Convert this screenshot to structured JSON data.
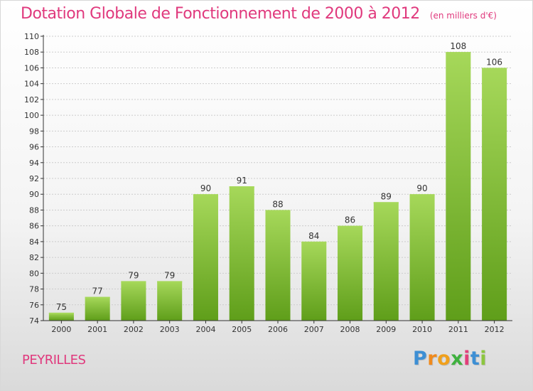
{
  "chart_data": {
    "type": "bar",
    "title": "Dotation Globale de Fonctionnement de 2000 à 2012",
    "subtitle": "(en milliers d'€)",
    "categories": [
      "2000",
      "2001",
      "2002",
      "2003",
      "2004",
      "2005",
      "2006",
      "2007",
      "2008",
      "2009",
      "2010",
      "2011",
      "2012"
    ],
    "values": [
      75,
      77,
      79,
      79,
      90,
      91,
      88,
      84,
      86,
      89,
      90,
      108,
      106
    ],
    "ylim": [
      74,
      110
    ],
    "yticks": [
      74,
      76,
      78,
      80,
      82,
      84,
      86,
      88,
      90,
      92,
      94,
      96,
      98,
      100,
      102,
      104,
      106,
      108,
      110
    ],
    "grid": true,
    "bar_color": "#7cbb2a",
    "bar_color_light": "#a6d85a",
    "bar_color_dark": "#5f9e1a"
  },
  "location": "PEYRILLES",
  "logo": {
    "letters": [
      "P",
      "r",
      "o",
      "x",
      "i",
      "t",
      "i"
    ]
  },
  "colors": {
    "title": "#e0397d",
    "grid": "#cccccc",
    "axis": "#333333"
  }
}
